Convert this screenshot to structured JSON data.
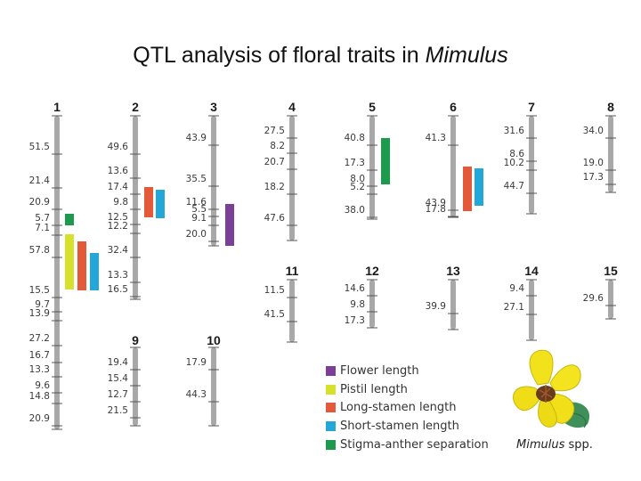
{
  "title": {
    "main": "QTL analysis of floral traits in ",
    "genus": "Mimulus"
  },
  "colors": {
    "flower_length": "#7b3f98",
    "pistil_length": "#d7e02a",
    "long_stamen_length": "#e25a3a",
    "short_stamen_length": "#22a7d8",
    "stigma_anther_separation": "#1e9a4e",
    "chromosome": "#a8a8a8"
  },
  "legend": [
    {
      "label": "Flower length",
      "color": "#7b3f98"
    },
    {
      "label": "Pistil length",
      "color": "#d7e02a"
    },
    {
      "label": "Long-stamen length",
      "color": "#e25a3a"
    },
    {
      "label": "Short-stamen length",
      "color": "#22a7d8"
    },
    {
      "label": "Stigma-anther separation",
      "color": "#1e9a4e"
    }
  ],
  "flower_caption": {
    "genus": "Mimulus",
    "suffix": " spp."
  },
  "chromosomes": [
    {
      "id": "1",
      "intervals": [
        "51.5",
        "21.4",
        "20.9",
        "5.7",
        "7.1",
        "57.8",
        "15.5",
        "9.7",
        "13.9",
        "27.2",
        "16.7",
        "13.3",
        "9.6",
        "14.8",
        "20.9"
      ]
    },
    {
      "id": "2",
      "intervals": [
        "49.6",
        "13.6",
        "17.4",
        "9.8",
        "12.5",
        "12.2",
        "32.4",
        "13.3",
        "16.5"
      ]
    },
    {
      "id": "3",
      "intervals": [
        "43.9",
        "35.5",
        "11.6",
        "5.5",
        "9.1",
        "20.0"
      ]
    },
    {
      "id": "4",
      "intervals": [
        "27.5",
        "8.2",
        "20.7",
        "18.2",
        "47.6"
      ]
    },
    {
      "id": "5",
      "intervals": [
        "40.8",
        "17.3",
        "8.0",
        "5.2",
        "38.0"
      ]
    },
    {
      "id": "6",
      "intervals": [
        "41.3",
        "43.9",
        "17.8"
      ]
    },
    {
      "id": "7",
      "intervals": [
        "31.6",
        "8.6",
        "10.2",
        "44.7"
      ]
    },
    {
      "id": "8",
      "intervals": [
        "34.0",
        "19.0",
        "17.3"
      ]
    },
    {
      "id": "9",
      "intervals": [
        "19.4",
        "15.4",
        "12.7",
        "21.5"
      ]
    },
    {
      "id": "10",
      "intervals": [
        "17.9",
        "44.3"
      ]
    },
    {
      "id": "11",
      "intervals": [
        "11.5",
        "41.5"
      ]
    },
    {
      "id": "12",
      "intervals": [
        "14.6",
        "9.8",
        "17.3"
      ]
    },
    {
      "id": "13",
      "intervals": [
        "39.9"
      ]
    },
    {
      "id": "14",
      "intervals": [
        "9.4",
        "27.1"
      ]
    },
    {
      "id": "15",
      "intervals": [
        "29.6"
      ]
    }
  ],
  "qtls": [
    {
      "chromosome": "1",
      "trait": "Stigma-anther separation",
      "color": "#1e9a4e"
    },
    {
      "chromosome": "1",
      "trait": "Pistil length",
      "color": "#d7e02a"
    },
    {
      "chromosome": "1",
      "trait": "Long-stamen length",
      "color": "#e25a3a"
    },
    {
      "chromosome": "1",
      "trait": "Short-stamen length",
      "color": "#22a7d8"
    },
    {
      "chromosome": "2",
      "trait": "Long-stamen length",
      "color": "#e25a3a"
    },
    {
      "chromosome": "2",
      "trait": "Short-stamen length",
      "color": "#22a7d8"
    },
    {
      "chromosome": "3",
      "trait": "Flower length",
      "color": "#7b3f98"
    },
    {
      "chromosome": "5",
      "trait": "Stigma-anther separation",
      "color": "#1e9a4e"
    },
    {
      "chromosome": "6",
      "trait": "Long-stamen length",
      "color": "#e25a3a"
    },
    {
      "chromosome": "6",
      "trait": "Short-stamen length",
      "color": "#22a7d8"
    }
  ]
}
